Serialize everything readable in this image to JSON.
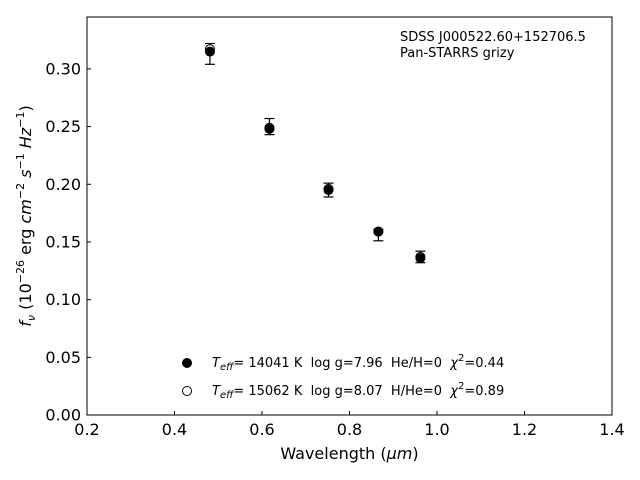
{
  "chart_data": {
    "type": "scatter",
    "xlabel_main": "Wavelength (",
    "xlabel_unit": "μm",
    "xlabel_close": ")",
    "ylabel": {
      "f": "f",
      "nu": "ν",
      "p1": " (10",
      "exp1": "−26",
      "p2": " erg ",
      "cm": "cm",
      "exp2": "−2",
      "s": " s",
      "exp3": "−1",
      "hz": " Hz",
      "exp4": "−1",
      "p3": ")"
    },
    "xlim": [
      0.2,
      1.4
    ],
    "ylim": [
      0.0,
      0.345
    ],
    "xticks": [
      "0.2",
      "0.4",
      "0.6",
      "0.8",
      "1.0",
      "1.2",
      "1.4"
    ],
    "yticks": [
      "0.00",
      "0.05",
      "0.10",
      "0.15",
      "0.20",
      "0.25",
      "0.30"
    ],
    "annotation": {
      "line1": "SDSS J000522.60+152706.5",
      "line2": "Pan-STARRS grizy"
    },
    "observed": {
      "x": [
        0.481,
        0.617,
        0.752,
        0.866,
        0.962
      ],
      "y": [
        0.313,
        0.25,
        0.195,
        0.156,
        0.137
      ],
      "yerr": [
        0.009,
        0.007,
        0.006,
        0.005,
        0.005
      ]
    },
    "series": [
      {
        "marker": "filled",
        "x": [
          0.481,
          0.617,
          0.752,
          0.866,
          0.962
        ],
        "y": [
          0.315,
          0.248,
          0.195,
          0.159,
          0.136
        ],
        "label": {
          "T": "T",
          "eff": "eff",
          "rest": "= 14041 K  log g=7.96  He/H=0  ",
          "chi": "χ",
          "sup": "2",
          "val": "=0.44"
        }
      },
      {
        "marker": "open",
        "x": [
          0.481,
          0.617,
          0.752,
          0.866,
          0.962
        ],
        "y": [
          0.317,
          0.249,
          0.196,
          0.159,
          0.137
        ],
        "label": {
          "T": "T",
          "eff": "eff",
          "rest": "= 15062 K  log g=8.07  H/He=0  ",
          "chi": "χ",
          "sup": "2",
          "val": "=0.89"
        }
      }
    ],
    "legend_position": "lower-center"
  }
}
